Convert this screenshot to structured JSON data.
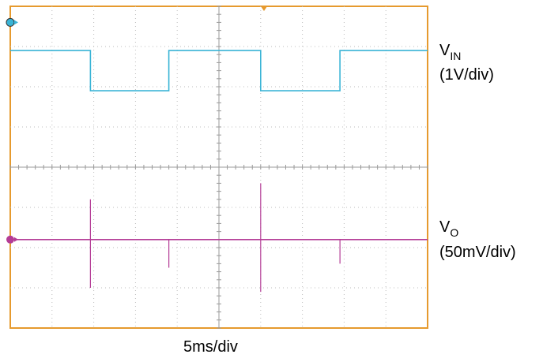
{
  "chart_data": {
    "type": "line",
    "title": "",
    "grid": true,
    "xlabel": "5ms/div",
    "time_per_div_ms": 5,
    "x_divs": 10,
    "y_divs": 8,
    "x": [
      0,
      5,
      9.6,
      9.6,
      19,
      19,
      24.3,
      30,
      30,
      39.5,
      39.5,
      50
    ],
    "series": [
      {
        "name_main": "V",
        "name_sub": "IN",
        "scale": "(1V/div)",
        "color": "#3ab4d6",
        "marker_div": 3.6,
        "values": [
          2.9,
          2.9,
          2.9,
          1.9,
          1.9,
          2.9,
          2.9,
          2.9,
          1.9,
          1.9,
          2.9,
          2.9
        ]
      },
      {
        "name_main": "V",
        "name_sub": "O",
        "scale": "(50mV/div)",
        "color": "#b43c96",
        "marker_div": -1.8,
        "values": [
          -1.8,
          -1.8,
          -1.8,
          -1.8,
          -1.8,
          -1.8,
          -1.8,
          -1.8,
          -1.8,
          -1.8,
          -1.8,
          -1.8
        ],
        "spikes": [
          {
            "x": 9.6,
            "high": -0.8,
            "low": -3.0
          },
          {
            "x": 19.0,
            "high": -1.8,
            "low": -2.5
          },
          {
            "x": 30.0,
            "high": -0.4,
            "low": -3.1
          },
          {
            "x": 39.5,
            "high": -1.8,
            "low": -2.4
          }
        ]
      }
    ]
  }
}
